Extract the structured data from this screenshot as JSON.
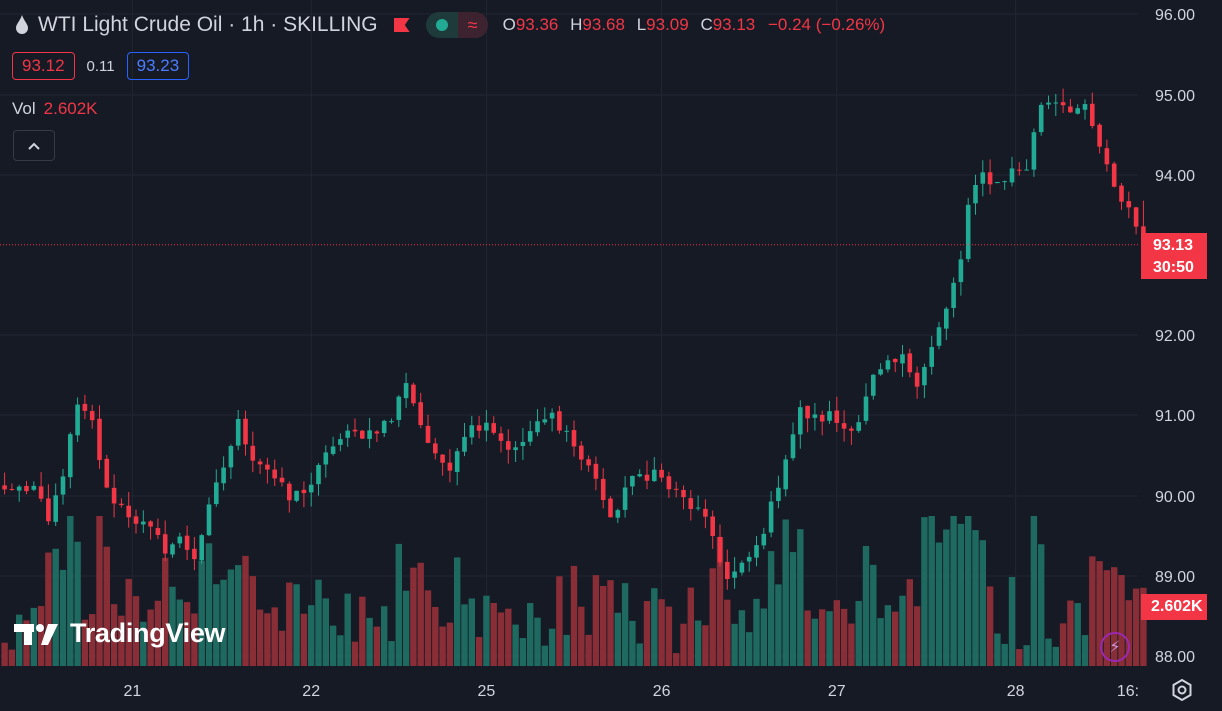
{
  "header": {
    "symbol_title": "WTI Light Crude Oil · 1h · SKILLING",
    "ohlc": [
      {
        "key": "O",
        "value": "93.36"
      },
      {
        "key": "H",
        "value": "93.68"
      },
      {
        "key": "L",
        "value": "93.09"
      },
      {
        "key": "C",
        "value": "93.13"
      }
    ],
    "change": "−0.24 (−0.26%)",
    "sell_price": "93.12",
    "spread": "0.11",
    "buy_price": "93.23",
    "volume_label": "Vol",
    "volume_value": "2.602K"
  },
  "price_tags": {
    "last_price": "93.13",
    "countdown": "30:50",
    "last_volume": "2.602K"
  },
  "branding": {
    "logo_text": "TradingView"
  },
  "icons": {
    "drop": "drop-icon",
    "flag": "flag-icon",
    "collapse": "chevron-up-icon",
    "bolt": "lightning-icon",
    "settings": "gear-icon"
  },
  "colors": {
    "background": "#161a25",
    "up": "#22ab94",
    "down": "#f23645",
    "grid": "#232632",
    "text": "#d1d4dc"
  },
  "chart_data": {
    "type": "candlestick",
    "x_tick_labels": [
      "21",
      "22",
      "25",
      "26",
      "27",
      "28",
      "16:"
    ],
    "y_tick_labels": [
      "96.00",
      "95.00",
      "94.00",
      "92.00",
      "91.00",
      "90.00",
      "89.00",
      "88.00"
    ],
    "ylim": [
      87.85,
      96.15
    ],
    "volume_unit": "K",
    "grid": true,
    "legend": "top-left",
    "anchors": [
      {
        "x": 1,
        "close": 90.08
      },
      {
        "x": 4,
        "close": 90.1
      },
      {
        "x": 6,
        "close": 89.65
      },
      {
        "x": 8,
        "close": 90.3
      },
      {
        "x": 10,
        "close": 91.1
      },
      {
        "x": 12,
        "close": 90.9
      },
      {
        "x": 14,
        "close": 90.05
      },
      {
        "x": 17,
        "close": 89.78
      },
      {
        "x": 20,
        "close": 89.55
      },
      {
        "x": 22,
        "close": 89.35
      },
      {
        "x": 24,
        "close": 89.45
      },
      {
        "x": 26,
        "close": 89.25
      },
      {
        "x": 29,
        "close": 90.1
      },
      {
        "x": 32,
        "close": 90.9
      },
      {
        "x": 34,
        "close": 90.5
      },
      {
        "x": 36,
        "close": 90.35
      },
      {
        "x": 39,
        "close": 89.95
      },
      {
        "x": 42,
        "close": 90.15
      },
      {
        "x": 45,
        "close": 90.65
      },
      {
        "x": 47,
        "close": 90.75
      },
      {
        "x": 50,
        "close": 90.8
      },
      {
        "x": 53,
        "close": 90.95
      },
      {
        "x": 55,
        "close": 91.45
      },
      {
        "x": 57,
        "close": 90.9
      },
      {
        "x": 59,
        "close": 90.45
      },
      {
        "x": 61,
        "close": 90.4
      },
      {
        "x": 63,
        "close": 90.8
      },
      {
        "x": 66,
        "close": 90.95
      },
      {
        "x": 68,
        "close": 90.7
      },
      {
        "x": 70,
        "close": 90.55
      },
      {
        "x": 72,
        "close": 90.8
      },
      {
        "x": 75,
        "close": 91.0
      },
      {
        "x": 77,
        "close": 90.8
      },
      {
        "x": 79,
        "close": 90.45
      },
      {
        "x": 81,
        "close": 90.25
      },
      {
        "x": 83,
        "close": 89.65
      },
      {
        "x": 85,
        "close": 90.1
      },
      {
        "x": 87,
        "close": 90.25
      },
      {
        "x": 89,
        "close": 90.3
      },
      {
        "x": 91,
        "close": 90.1
      },
      {
        "x": 93,
        "close": 89.95
      },
      {
        "x": 95,
        "close": 89.8
      },
      {
        "x": 97,
        "close": 89.5
      },
      {
        "x": 99,
        "close": 88.95
      },
      {
        "x": 101,
        "close": 89.1
      },
      {
        "x": 103,
        "close": 89.35
      },
      {
        "x": 105,
        "close": 89.85
      },
      {
        "x": 107,
        "close": 90.5
      },
      {
        "x": 109,
        "close": 91.05
      },
      {
        "x": 111,
        "close": 90.95
      },
      {
        "x": 113,
        "close": 91.0
      },
      {
        "x": 115,
        "close": 90.85
      },
      {
        "x": 117,
        "close": 90.95
      },
      {
        "x": 119,
        "close": 91.45
      },
      {
        "x": 121,
        "close": 91.6
      },
      {
        "x": 123,
        "close": 91.7
      },
      {
        "x": 125,
        "close": 91.45
      },
      {
        "x": 127,
        "close": 91.85
      },
      {
        "x": 129,
        "close": 92.3
      },
      {
        "x": 131,
        "close": 92.95
      },
      {
        "x": 132,
        "close": 93.6
      },
      {
        "x": 134,
        "close": 94.0
      },
      {
        "x": 136,
        "close": 93.9
      },
      {
        "x": 138,
        "close": 94.05
      },
      {
        "x": 140,
        "close": 94.1
      },
      {
        "x": 142,
        "close": 94.9
      },
      {
        "x": 144,
        "close": 94.95
      },
      {
        "x": 146,
        "close": 94.85
      },
      {
        "x": 148,
        "close": 94.8
      },
      {
        "x": 150,
        "close": 94.35
      },
      {
        "x": 152,
        "close": 93.8
      },
      {
        "x": 154,
        "close": 93.6
      },
      {
        "x": 155,
        "close": 93.36
      },
      {
        "x": 156,
        "close": 93.13
      }
    ],
    "last_candle": {
      "open": 93.36,
      "high": 93.68,
      "low": 93.09,
      "close": 93.13
    },
    "last_volume": 2.602
  }
}
